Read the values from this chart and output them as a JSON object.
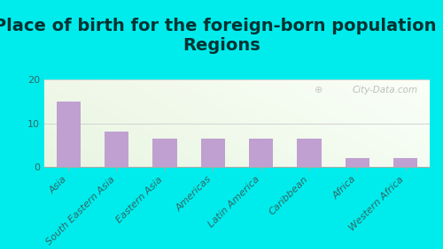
{
  "title": "Place of birth for the foreign-born population -\nRegions",
  "categories": [
    "Asia",
    "South Eastern Asia",
    "Eastern Asia",
    "Americas",
    "Latin America",
    "Caribbean",
    "Africa",
    "Western Africa"
  ],
  "values": [
    15.0,
    8.0,
    6.5,
    6.5,
    6.5,
    6.5,
    2.0,
    2.0
  ],
  "bar_color": "#c0a0d0",
  "background_outer": "#00ecec",
  "plot_bg_topleft": "#e8f0e0",
  "plot_bg_topright": "#f5faf0",
  "plot_bg_bottom": "#f8fff8",
  "ylim": [
    0,
    20
  ],
  "yticks": [
    0,
    10,
    20
  ],
  "title_fontsize": 14,
  "tick_fontsize": 8,
  "title_color": "#003333",
  "watermark": "City-Data.com"
}
